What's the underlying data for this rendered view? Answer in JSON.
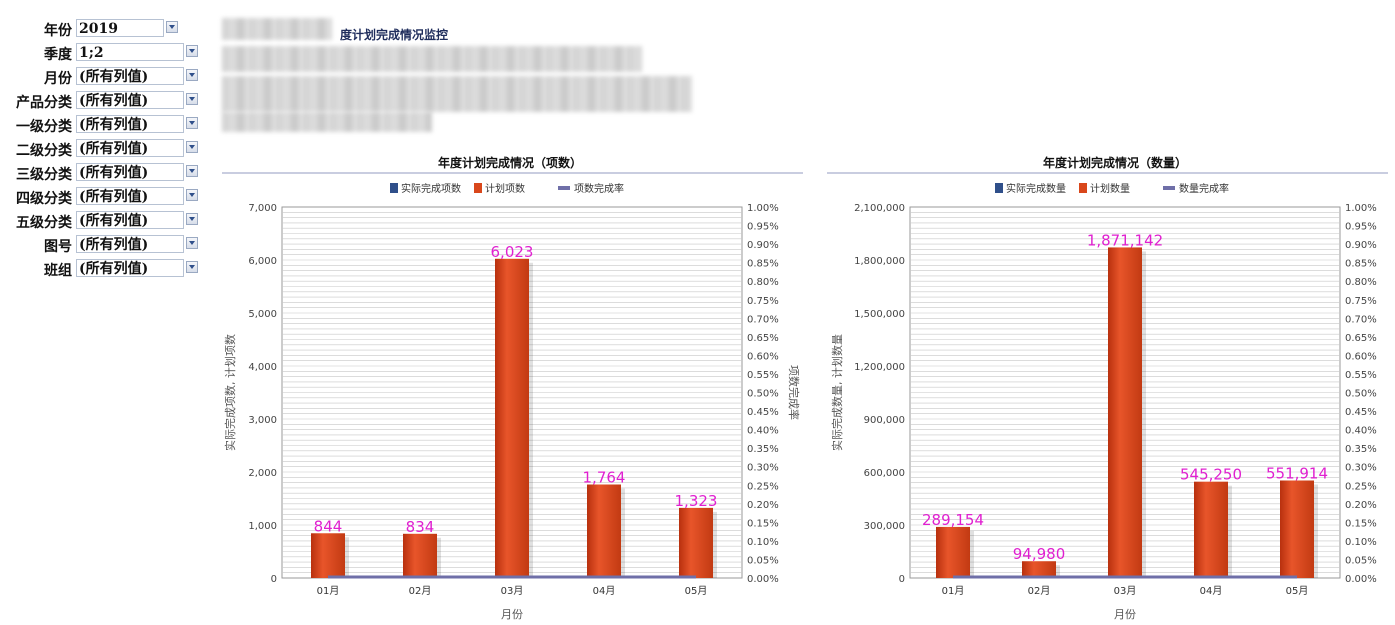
{
  "filters": [
    {
      "label": "年份",
      "value": "2019"
    },
    {
      "label": "季度",
      "value": "1;2"
    },
    {
      "label": "月份",
      "value": "(所有列值)"
    },
    {
      "label": "产品分类",
      "value": "(所有列值)"
    },
    {
      "label": "一级分类",
      "value": "(所有列值)"
    },
    {
      "label": "二级分类",
      "value": "(所有列值)"
    },
    {
      "label": "三级分类",
      "value": "(所有列值)"
    },
    {
      "label": "四级分类",
      "value": "(所有列值)"
    },
    {
      "label": "五级分类",
      "value": "(所有列值)"
    },
    {
      "label": "图号",
      "value": "(所有列值)"
    },
    {
      "label": "班组",
      "value": "(所有列值)"
    }
  ],
  "report": {
    "title_visible": "度计划完成情况监控"
  },
  "colors": {
    "actual": "#2f4f8a",
    "plan": "#d9471b",
    "rate": "#6f6fa8",
    "data_label": "#e020d0",
    "grid": "#c8c8c8"
  },
  "chart_data": [
    {
      "type": "bar",
      "title": "年度计划完成情况（项数）",
      "categories": [
        "01月",
        "02月",
        "03月",
        "04月",
        "05月"
      ],
      "series": [
        {
          "name": "实际完成项数",
          "values": [
            0,
            0,
            0,
            0,
            0
          ]
        },
        {
          "name": "计划项数",
          "values": [
            844,
            834,
            6023,
            1764,
            1323
          ]
        },
        {
          "name": "项数完成率",
          "values": [
            0,
            0,
            0,
            0,
            0
          ]
        }
      ],
      "data_labels": [
        "844",
        "834",
        "6,023",
        "1,764",
        "1,323"
      ],
      "xlabel": "月份",
      "ylabel": "实际完成项数, 计划项数",
      "y2label": "项数完成率",
      "ylim": [
        0,
        7000
      ],
      "yticks": [
        "0",
        "1,000",
        "2,000",
        "3,000",
        "4,000",
        "5,000",
        "6,000",
        "7,000"
      ],
      "y2lim": [
        0,
        1
      ],
      "y2ticks": [
        "0.00%",
        "0.05%",
        "0.10%",
        "0.15%",
        "0.20%",
        "0.25%",
        "0.30%",
        "0.35%",
        "0.40%",
        "0.45%",
        "0.50%",
        "0.55%",
        "0.60%",
        "0.65%",
        "0.70%",
        "0.75%",
        "0.80%",
        "0.85%",
        "0.90%",
        "0.95%",
        "1.00%"
      ],
      "legend": "top"
    },
    {
      "type": "bar",
      "title": "年度计划完成情况（数量）",
      "categories": [
        "01月",
        "02月",
        "03月",
        "04月",
        "05月"
      ],
      "series": [
        {
          "name": "实际完成数量",
          "values": [
            0,
            0,
            0,
            0,
            0
          ]
        },
        {
          "name": "计划数量",
          "values": [
            289154,
            94980,
            1871142,
            545250,
            551914
          ]
        },
        {
          "name": "数量完成率",
          "values": [
            0,
            0,
            0,
            0,
            0
          ]
        }
      ],
      "data_labels": [
        "289,154",
        "94,980",
        "1,871,142",
        "545,250",
        "551,914"
      ],
      "xlabel": "月份",
      "ylabel": "实际完成数量, 计划数量",
      "y2label": "",
      "ylim": [
        0,
        2100000
      ],
      "yticks": [
        "0",
        "300,000",
        "600,000",
        "900,000",
        "1,200,000",
        "1,500,000",
        "1,800,000",
        "2,100,000"
      ],
      "y2lim": [
        0,
        1
      ],
      "y2ticks": [
        "0.00%",
        "0.05%",
        "0.10%",
        "0.15%",
        "0.20%",
        "0.25%",
        "0.30%",
        "0.35%",
        "0.40%",
        "0.45%",
        "0.50%",
        "0.55%",
        "0.60%",
        "0.65%",
        "0.70%",
        "0.75%",
        "0.80%",
        "0.85%",
        "0.90%",
        "0.95%",
        "1.00%"
      ],
      "legend": "top"
    }
  ]
}
